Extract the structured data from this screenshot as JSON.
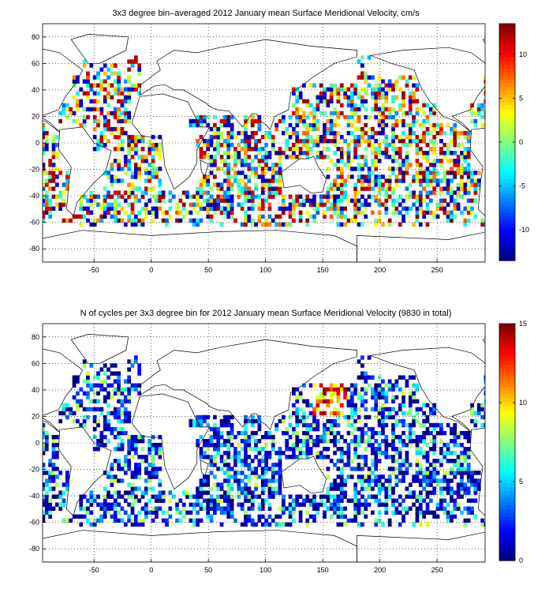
{
  "chart_data": [
    {
      "type": "heatmap",
      "title": "3x3 degree bin–averaged 2012 January mean Surface Meridional Velocity, cm/s",
      "xlabel": "",
      "ylabel": "",
      "xlim": [
        -95,
        292
      ],
      "ylim": [
        -90,
        90
      ],
      "x_ticks": [
        "-50",
        "0",
        "50",
        "100",
        "150",
        "200",
        "250"
      ],
      "x_tick_values": [
        -50,
        0,
        50,
        100,
        150,
        200,
        250
      ],
      "y_ticks": [
        "80",
        "60",
        "40",
        "20",
        "0",
        "-20",
        "-40",
        "-60",
        "-80"
      ],
      "y_tick_values": [
        80,
        60,
        40,
        20,
        0,
        -20,
        -40,
        -60,
        -80
      ],
      "bin_size_deg": 3,
      "grid": true,
      "colormap": "jet",
      "colorbar": {
        "position": "right",
        "range": [
          -13.5,
          13.5
        ],
        "ticks": [
          "10",
          "5",
          "0",
          "-5",
          "-10"
        ],
        "tick_values": [
          10,
          5,
          0,
          -5,
          -10
        ]
      }
    },
    {
      "type": "heatmap",
      "title": "N of cycles per 3x3 degree bin for 2012 January mean Surface Meridional Velocity (9830 in total)",
      "xlabel": "",
      "ylabel": "",
      "xlim": [
        -95,
        292
      ],
      "ylim": [
        -90,
        90
      ],
      "x_ticks": [
        "-50",
        "0",
        "50",
        "100",
        "150",
        "200",
        "250"
      ],
      "x_tick_values": [
        -50,
        0,
        50,
        100,
        150,
        200,
        250
      ],
      "y_ticks": [
        "80",
        "60",
        "40",
        "20",
        "0",
        "-20",
        "-40",
        "-60",
        "-80"
      ],
      "y_tick_values": [
        80,
        60,
        40,
        20,
        0,
        -20,
        -40,
        -60,
        -80
      ],
      "bin_size_deg": 3,
      "grid": true,
      "colormap": "jet",
      "colorbar": {
        "position": "right",
        "range": [
          0,
          15
        ],
        "ticks": [
          "15",
          "10",
          "5",
          "0"
        ],
        "tick_values": [
          15,
          10,
          5,
          0
        ]
      }
    }
  ]
}
